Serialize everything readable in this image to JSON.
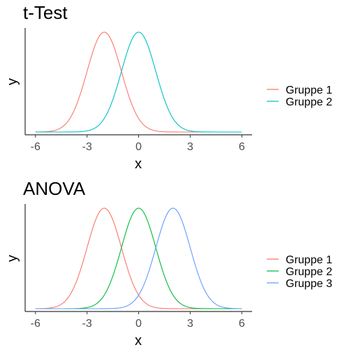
{
  "chart_data": [
    {
      "type": "line",
      "title": "t-Test",
      "xlabel": "x",
      "ylabel": "y",
      "xlim": [
        -6.6,
        6.6
      ],
      "x_ticks": [
        -6,
        -3,
        0,
        3,
        6
      ],
      "x_tick_labels": [
        "-6",
        "-3",
        "0",
        "3",
        "6"
      ],
      "y_ticks_shown": false,
      "grid": false,
      "legend_position": "right",
      "x_range": [
        -6,
        6
      ],
      "curve": "normal density, sd 1",
      "series": [
        {
          "name": "Gruppe 1",
          "mean": -2,
          "sd": 1,
          "color": "#F8766D"
        },
        {
          "name": "Gruppe 2",
          "mean": 0,
          "sd": 1,
          "color": "#00BFC4"
        }
      ]
    },
    {
      "type": "line",
      "title": "ANOVA",
      "xlabel": "x",
      "ylabel": "y",
      "xlim": [
        -6.6,
        6.6
      ],
      "x_ticks": [
        -6,
        -3,
        0,
        3,
        6
      ],
      "x_tick_labels": [
        "-6",
        "-3",
        "0",
        "3",
        "6"
      ],
      "y_ticks_shown": false,
      "grid": false,
      "legend_position": "right",
      "x_range": [
        -6,
        6
      ],
      "curve": "normal density, sd 1",
      "series": [
        {
          "name": "Gruppe 1",
          "mean": -2,
          "sd": 1,
          "color": "#F8766D"
        },
        {
          "name": "Gruppe 2",
          "mean": 0,
          "sd": 1,
          "color": "#00BA38"
        },
        {
          "name": "Gruppe 3",
          "mean": 2,
          "sd": 1,
          "color": "#619CFF"
        }
      ]
    }
  ]
}
